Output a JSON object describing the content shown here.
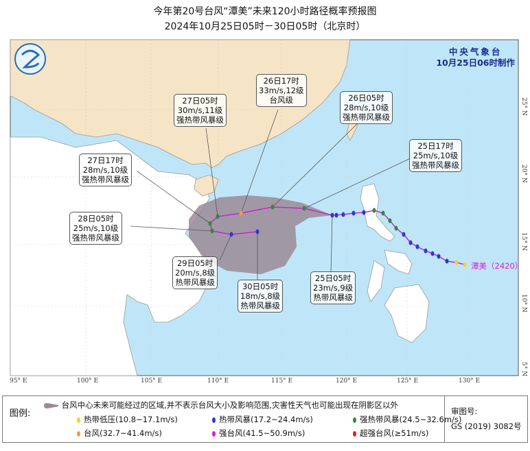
{
  "title": "今年第20号台风“潭美”未来120小时路径概率预报图",
  "subtitle": "2024年10月25日05时－30日05时（北京时）",
  "agency": {
    "name": "中央气象台",
    "issued": "10月25日06时制作"
  },
  "typhoon_label": "潭美（2420）",
  "lon_ticks": [
    "95° E",
    "100° E",
    "105° E",
    "110° E",
    "115° E",
    "120° E",
    "125° E",
    "130° E"
  ],
  "lat_ticks": [
    "25° N",
    "20° N",
    "15° N",
    "10° N",
    "5° N"
  ],
  "callouts": [
    {
      "time": "27日05时",
      "wind": "30m/s,11级",
      "grade": "强热带风暴级"
    },
    {
      "time": "26日17时",
      "wind": "33m/s,12级",
      "grade": "台风级"
    },
    {
      "time": "26日05时",
      "wind": "28m/s,10级",
      "grade": "强热带风暴级"
    },
    {
      "time": "25日17时",
      "wind": "25m/s,10级",
      "grade": "强热带风暴级"
    },
    {
      "time": "27日17时",
      "wind": "28m/s,10级",
      "grade": "强热带风暴级"
    },
    {
      "time": "28日05时",
      "wind": "25m/s,10级",
      "grade": "强热带风暴级"
    },
    {
      "time": "29日05时",
      "wind": "20m/s,8级",
      "grade": "热带风暴级"
    },
    {
      "time": "30日05时",
      "wind": "18m/s,8级",
      "grade": "热带风暴级"
    },
    {
      "time": "25日05时",
      "wind": "23m/s,9级",
      "grade": "热带风暴级"
    }
  ],
  "legend": {
    "label": "图例:",
    "cone_text": "台风中心未来可能经过的区域,并不表示台风大小及影响范围,灾害性天气也可能出现在阴影区以外",
    "items": [
      {
        "label": "热带低压(10.8~17.1m/s)",
        "color": "#f2d22e"
      },
      {
        "label": "热带风暴(17.2~24.4m/s)",
        "color": "#2a3ad0"
      },
      {
        "label": "强热带风暴(24.5~32.6m/s)",
        "color": "#2f8a3a"
      },
      {
        "label": "台风(32.7~41.4m/s)",
        "color": "#f29a4a"
      },
      {
        "label": "强台风(41.5~50.9m/s)",
        "color": "#e01cd8"
      },
      {
        "label": "超强台风(≥51m/s)",
        "color": "#e02020"
      }
    ],
    "audit_label": "审图号:",
    "audit_number": "GS (2019) 3082号"
  },
  "colors": {
    "sea": "#bfe6f8",
    "china": "#f6e4c6",
    "land": "#ffffff",
    "cone": "#9b8a96",
    "track": "#d21fd2"
  }
}
